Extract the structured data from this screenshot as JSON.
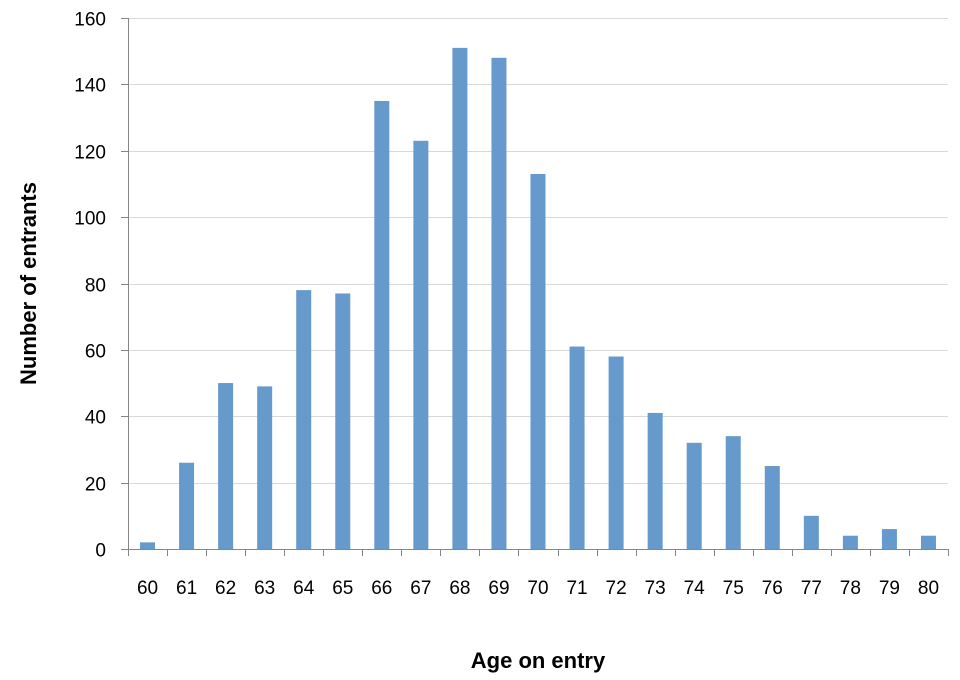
{
  "chart_data": {
    "type": "bar",
    "title": "",
    "xlabel": "Age on entry",
    "ylabel": "Number of entrants",
    "categories": [
      "60",
      "61",
      "62",
      "63",
      "64",
      "65",
      "66",
      "67",
      "68",
      "69",
      "70",
      "71",
      "72",
      "73",
      "74",
      "75",
      "76",
      "77",
      "78",
      "79",
      "80"
    ],
    "values": [
      2,
      26,
      50,
      49,
      78,
      77,
      135,
      123,
      151,
      148,
      113,
      61,
      58,
      41,
      32,
      34,
      25,
      10,
      4,
      6,
      4
    ],
    "ylim": [
      0,
      160
    ],
    "yticks": [
      0,
      20,
      40,
      60,
      80,
      100,
      120,
      140,
      160
    ],
    "grid": true,
    "legend": "none",
    "colors": {
      "bar": "#6699cc",
      "grid": "#d9d9d9",
      "axis": "#868686"
    }
  }
}
